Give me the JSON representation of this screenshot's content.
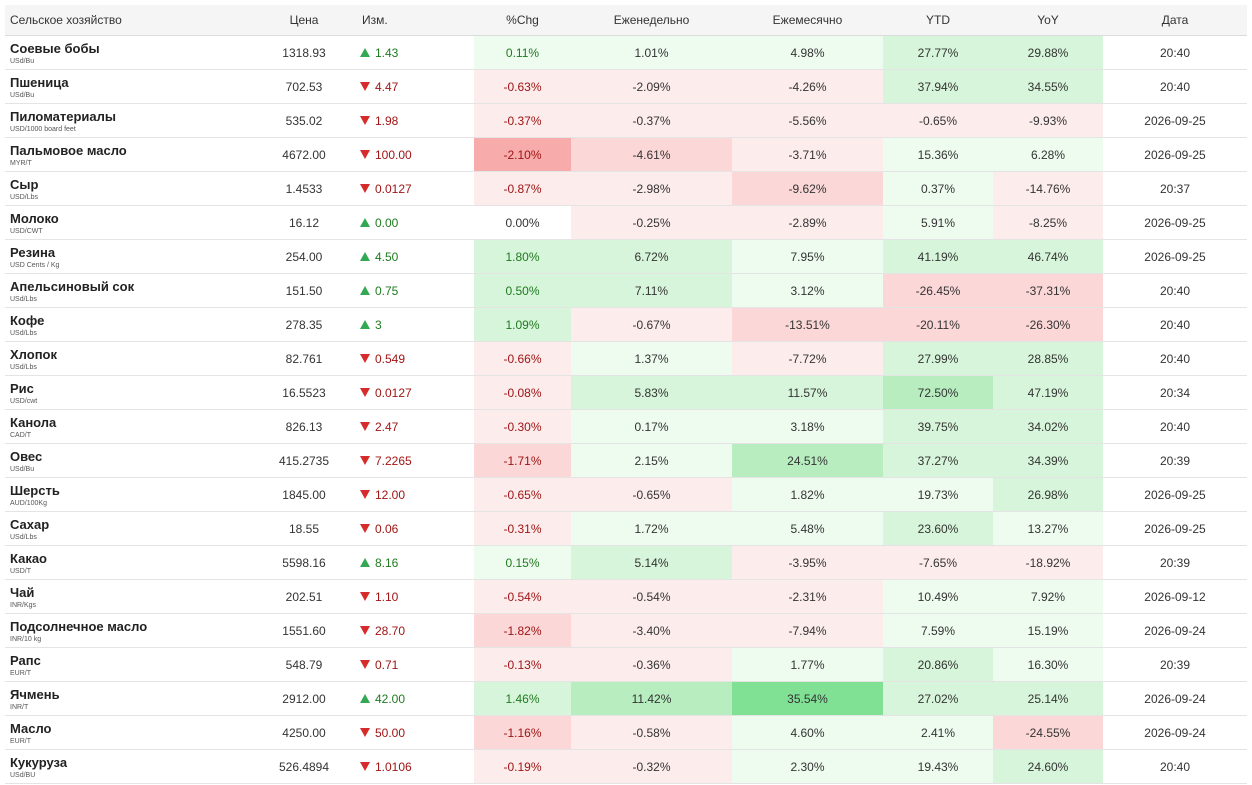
{
  "headers": {
    "name": "Сельское хозяйство",
    "price": "Цена",
    "change": "Изм.",
    "pct": "%Chg",
    "weekly": "Еженедельно",
    "monthly": "Ежемесячно",
    "ytd": "YTD",
    "yoy": "YoY",
    "date": "Дата"
  },
  "colors": {
    "up_arrow": "#32a852",
    "down_arrow": "#d62b2b",
    "positive_text": "#1f7a1f",
    "negative_text": "#a01515",
    "green_light": "#eefbef",
    "green_medium": "#d7f5da",
    "green_strong": "#b7edbf",
    "green_max": "#80e195",
    "red_light": "#fdecec",
    "red_medium": "#fbd7d7",
    "red_strong": "#f7abab"
  },
  "rows": [
    {
      "name": "Соевые бобы",
      "unit": "USd/Bu",
      "price": "1318.93",
      "dir": "up",
      "change": "1.43",
      "pct": "0.11%",
      "weekly": "1.01%",
      "monthly": "4.98%",
      "ytd": "27.77%",
      "yoy": "29.88%",
      "date": "20:40"
    },
    {
      "name": "Пшеница",
      "unit": "USd/Bu",
      "price": "702.53",
      "dir": "down",
      "change": "4.47",
      "pct": "-0.63%",
      "weekly": "-2.09%",
      "monthly": "-4.26%",
      "ytd": "37.94%",
      "yoy": "34.55%",
      "date": "20:40"
    },
    {
      "name": "Пиломатериалы",
      "unit": "USD/1000 board feet",
      "price": "535.02",
      "dir": "down",
      "change": "1.98",
      "pct": "-0.37%",
      "weekly": "-0.37%",
      "monthly": "-5.56%",
      "ytd": "-0.65%",
      "yoy": "-9.93%",
      "date": "2026-09-25"
    },
    {
      "name": "Пальмовое масло",
      "unit": "MYR/T",
      "price": "4672.00",
      "dir": "down",
      "change": "100.00",
      "pct": "-2.10%",
      "weekly": "-4.61%",
      "monthly": "-3.71%",
      "ytd": "15.36%",
      "yoy": "6.28%",
      "date": "2026-09-25"
    },
    {
      "name": "Сыр",
      "unit": "USD/Lbs",
      "price": "1.4533",
      "dir": "down",
      "change": "0.0127",
      "pct": "-0.87%",
      "weekly": "-2.98%",
      "monthly": "-9.62%",
      "ytd": "0.37%",
      "yoy": "-14.76%",
      "date": "20:37"
    },
    {
      "name": "Молоко",
      "unit": "USD/CWT",
      "price": "16.12",
      "dir": "up",
      "change": "0.00",
      "pct": "0.00%",
      "weekly": "-0.25%",
      "monthly": "-2.89%",
      "ytd": "5.91%",
      "yoy": "-8.25%",
      "date": "2026-09-25"
    },
    {
      "name": "Резина",
      "unit": "USD Cents / Kg",
      "price": "254.00",
      "dir": "up",
      "change": "4.50",
      "pct": "1.80%",
      "weekly": "6.72%",
      "monthly": "7.95%",
      "ytd": "41.19%",
      "yoy": "46.74%",
      "date": "2026-09-25"
    },
    {
      "name": "Апельсиновый сок",
      "unit": "USd/Lbs",
      "price": "151.50",
      "dir": "up",
      "change": "0.75",
      "pct": "0.50%",
      "weekly": "7.11%",
      "monthly": "3.12%",
      "ytd": "-26.45%",
      "yoy": "-37.31%",
      "date": "20:40"
    },
    {
      "name": "Кофе",
      "unit": "USd/Lbs",
      "price": "278.35",
      "dir": "up",
      "change": "3",
      "pct": "1.09%",
      "weekly": "-0.67%",
      "monthly": "-13.51%",
      "ytd": "-20.11%",
      "yoy": "-26.30%",
      "date": "20:40"
    },
    {
      "name": "Хлопок",
      "unit": "USd/Lbs",
      "price": "82.761",
      "dir": "down",
      "change": "0.549",
      "pct": "-0.66%",
      "weekly": "1.37%",
      "monthly": "-7.72%",
      "ytd": "27.99%",
      "yoy": "28.85%",
      "date": "20:40"
    },
    {
      "name": "Рис",
      "unit": "USD/cwt",
      "price": "16.5523",
      "dir": "down",
      "change": "0.0127",
      "pct": "-0.08%",
      "weekly": "5.83%",
      "monthly": "11.57%",
      "ytd": "72.50%",
      "yoy": "47.19%",
      "date": "20:34"
    },
    {
      "name": "Канола",
      "unit": "CAD/T",
      "price": "826.13",
      "dir": "down",
      "change": "2.47",
      "pct": "-0.30%",
      "weekly": "0.17%",
      "monthly": "3.18%",
      "ytd": "39.75%",
      "yoy": "34.02%",
      "date": "20:40"
    },
    {
      "name": "Овес",
      "unit": "USd/Bu",
      "price": "415.2735",
      "dir": "down",
      "change": "7.2265",
      "pct": "-1.71%",
      "weekly": "2.15%",
      "monthly": "24.51%",
      "ytd": "37.27%",
      "yoy": "34.39%",
      "date": "20:39"
    },
    {
      "name": "Шерсть",
      "unit": "AUD/100Kg",
      "price": "1845.00",
      "dir": "down",
      "change": "12.00",
      "pct": "-0.65%",
      "weekly": "-0.65%",
      "monthly": "1.82%",
      "ytd": "19.73%",
      "yoy": "26.98%",
      "date": "2026-09-25"
    },
    {
      "name": "Сахар",
      "unit": "USd/Lbs",
      "price": "18.55",
      "dir": "down",
      "change": "0.06",
      "pct": "-0.31%",
      "weekly": "1.72%",
      "monthly": "5.48%",
      "ytd": "23.60%",
      "yoy": "13.27%",
      "date": "2026-09-25"
    },
    {
      "name": "Какао",
      "unit": "USD/T",
      "price": "5598.16",
      "dir": "up",
      "change": "8.16",
      "pct": "0.15%",
      "weekly": "5.14%",
      "monthly": "-3.95%",
      "ytd": "-7.65%",
      "yoy": "-18.92%",
      "date": "20:39"
    },
    {
      "name": "Чай",
      "unit": "INR/Kgs",
      "price": "202.51",
      "dir": "down",
      "change": "1.10",
      "pct": "-0.54%",
      "weekly": "-0.54%",
      "monthly": "-2.31%",
      "ytd": "10.49%",
      "yoy": "7.92%",
      "date": "2026-09-12"
    },
    {
      "name": "Подсолнечное масло",
      "unit": "INR/10 kg",
      "price": "1551.60",
      "dir": "down",
      "change": "28.70",
      "pct": "-1.82%",
      "weekly": "-3.40%",
      "monthly": "-7.94%",
      "ytd": "7.59%",
      "yoy": "15.19%",
      "date": "2026-09-24"
    },
    {
      "name": "Рапс",
      "unit": "EUR/T",
      "price": "548.79",
      "dir": "down",
      "change": "0.71",
      "pct": "-0.13%",
      "weekly": "-0.36%",
      "monthly": "1.77%",
      "ytd": "20.86%",
      "yoy": "16.30%",
      "date": "20:39"
    },
    {
      "name": "Ячмень",
      "unit": "INR/T",
      "price": "2912.00",
      "dir": "up",
      "change": "42.00",
      "pct": "1.46%",
      "weekly": "11.42%",
      "monthly": "35.54%",
      "ytd": "27.02%",
      "yoy": "25.14%",
      "date": "2026-09-24"
    },
    {
      "name": "Масло",
      "unit": "EUR/T",
      "price": "4250.00",
      "dir": "down",
      "change": "50.00",
      "pct": "-1.16%",
      "weekly": "-0.58%",
      "monthly": "4.60%",
      "ytd": "2.41%",
      "yoy": "-24.55%",
      "date": "2026-09-24"
    },
    {
      "name": "Кукуруза",
      "unit": "USd/BU",
      "price": "526.4894",
      "dir": "down",
      "change": "1.0106",
      "pct": "-0.19%",
      "weekly": "-0.32%",
      "monthly": "2.30%",
      "ytd": "19.43%",
      "yoy": "24.60%",
      "date": "20:40"
    }
  ]
}
